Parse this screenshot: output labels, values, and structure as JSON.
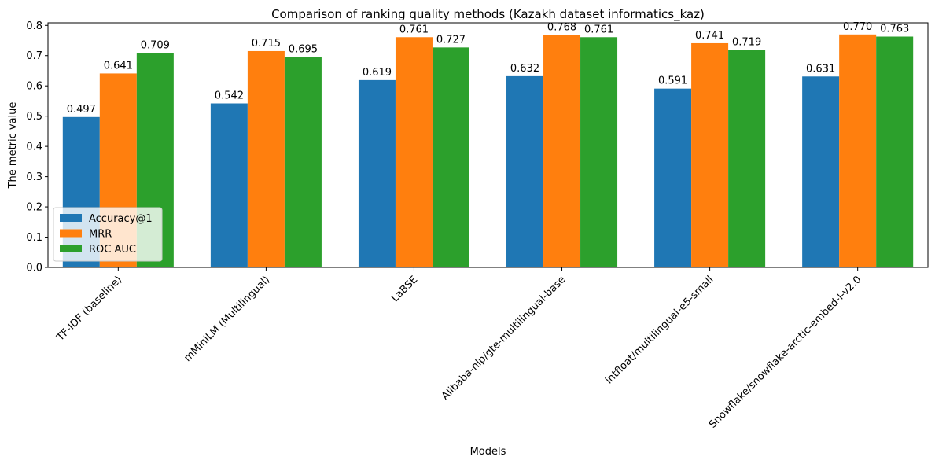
{
  "chart_data": {
    "type": "bar",
    "title": "Comparison of ranking quality methods (Kazakh dataset informatics_kaz)",
    "xlabel": "Models",
    "ylabel": "The metric value",
    "categories": [
      "TF-IDF (baseline)",
      "mMiniLM (Multilingual)",
      "LaBSE",
      "Alibaba-nlp/gte-multilingual-base",
      "intfloat/multilingual-e5-small",
      "Snowflake/snowflake-arctic-embed-l-v2.0"
    ],
    "series": [
      {
        "name": "Accuracy@1",
        "color": "#1f77b4",
        "values": [
          0.497,
          0.542,
          0.619,
          0.632,
          0.591,
          0.631
        ]
      },
      {
        "name": "MRR",
        "color": "#ff7f0e",
        "values": [
          0.641,
          0.715,
          0.761,
          0.768,
          0.741,
          0.77
        ]
      },
      {
        "name": "ROC AUC",
        "color": "#2ca02c",
        "values": [
          0.709,
          0.695,
          0.727,
          0.761,
          0.719,
          0.763
        ]
      }
    ],
    "data_labels": [
      [
        "0.497",
        "0.542",
        "0.619",
        "0.632",
        "0.591",
        "0.631"
      ],
      [
        "0.641",
        "0.715",
        "0.761",
        "0.768",
        "0.741",
        "0.770"
      ],
      [
        "0.709",
        "0.695",
        "0.727",
        "0.761",
        "0.719",
        "0.763"
      ]
    ],
    "yticks": [
      "0.0",
      "0.1",
      "0.2",
      "0.3",
      "0.4",
      "0.5",
      "0.6",
      "0.7",
      "0.8"
    ],
    "ylim": [
      0,
      0.8085
    ],
    "grid": false,
    "legend_position": "lower-left"
  }
}
